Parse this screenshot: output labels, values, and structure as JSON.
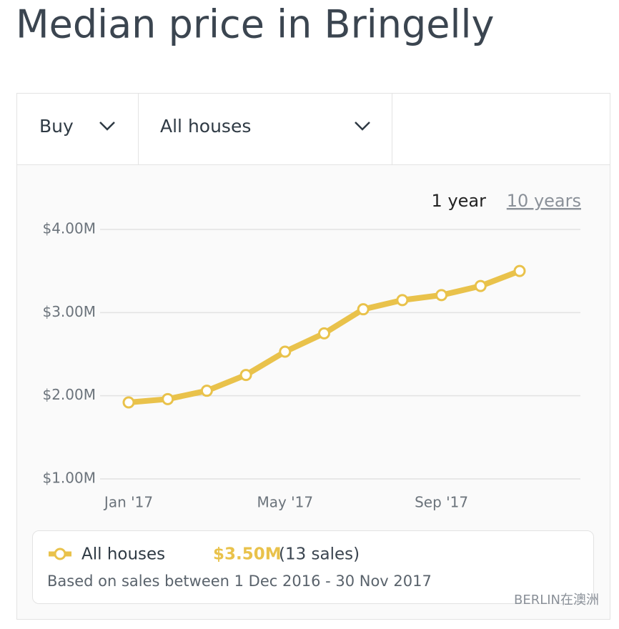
{
  "page_title": "Median price in Bringelly",
  "filters": {
    "mode": "Buy",
    "property": "All houses"
  },
  "ranges": [
    "1 year",
    "10 years"
  ],
  "chart_data": {
    "type": "line",
    "categories": [
      "Jan '17",
      null,
      null,
      null,
      "May '17",
      null,
      null,
      null,
      "Sep '17",
      null,
      null
    ],
    "series": [
      {
        "name": "All houses",
        "color": "#e9c24b",
        "values": [
          1920000,
          1960000,
          2060000,
          2250000,
          2530000,
          2750000,
          3040000,
          3150000,
          3210000,
          3320000,
          3500000
        ]
      }
    ],
    "ylim": [
      1000000,
      4000000
    ],
    "yticks": [
      {
        "value": 1000000,
        "label": "$1.00M"
      },
      {
        "value": 2000000,
        "label": "$2.00M"
      },
      {
        "value": 3000000,
        "label": "$3.00M"
      },
      {
        "value": 4000000,
        "label": "$4.00M"
      }
    ],
    "grid": true
  },
  "summary": {
    "price": "$3.50M",
    "sales": "(13 sales)",
    "note": "Based on sales between 1 Dec 2016 - 30 Nov 2017"
  },
  "watermark": "BERLIN在澳洲"
}
